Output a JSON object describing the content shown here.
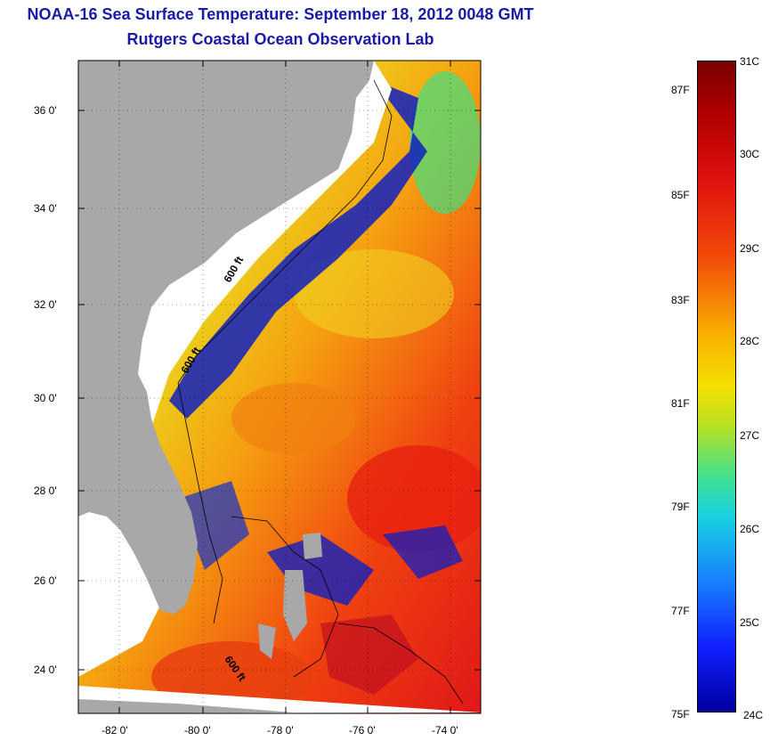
{
  "header": {
    "title": "NOAA-16 Sea Surface Temperature:  September 18, 2012 0048 GMT",
    "subtitle": "Rutgers Coastal Ocean Observation Lab"
  },
  "map": {
    "lat_ticks": [
      "36 0'",
      "34 0'",
      "32 0'",
      "30 0'",
      "28 0'",
      "26 0'",
      "24 0'"
    ],
    "lon_ticks": [
      "-82 0'",
      "-80 0'",
      "-78 0'",
      "-76 0'",
      "-74 0'"
    ],
    "contour_labels": [
      "600 ft",
      "600 ft",
      "600 ft"
    ],
    "colors": {
      "land": "#a8a8a8",
      "cloud": "#ffffff",
      "warm": "#e83010",
      "cool": "#1020c0"
    }
  },
  "colorbar": {
    "fahrenheit": [
      "87F",
      "85F",
      "83F",
      "81F",
      "79F",
      "77F",
      "75F"
    ],
    "celsius": [
      "31C",
      "30C",
      "29C",
      "28C",
      "27C",
      "26C",
      "25C",
      "24C"
    ]
  }
}
